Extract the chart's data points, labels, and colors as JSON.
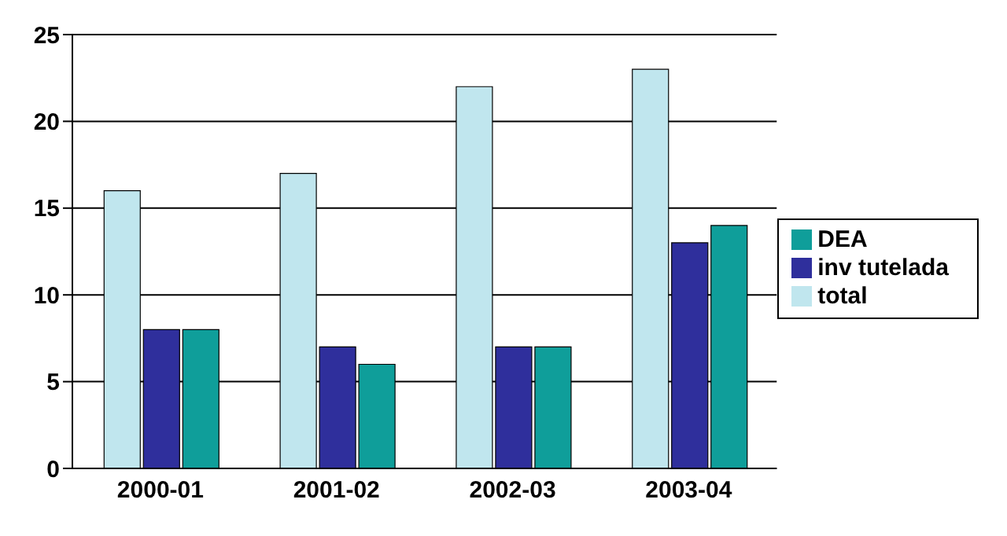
{
  "chart_data": {
    "type": "bar",
    "categories": [
      "2000-01",
      "2001-02",
      "2002-03",
      "2003-04"
    ],
    "series": [
      {
        "name": "total",
        "color": "#c0e6ee",
        "values": [
          16,
          17,
          22,
          23
        ]
      },
      {
        "name": "inv tutelada",
        "color": "#2f2f9c",
        "values": [
          8,
          7,
          7,
          13
        ]
      },
      {
        "name": "DEA",
        "color": "#0f9e9a",
        "values": [
          8,
          6,
          7,
          14
        ]
      }
    ],
    "ylim": [
      0,
      25
    ],
    "yticks": [
      0,
      5,
      10,
      15,
      20,
      25
    ],
    "grid": "y",
    "legend": "right"
  }
}
